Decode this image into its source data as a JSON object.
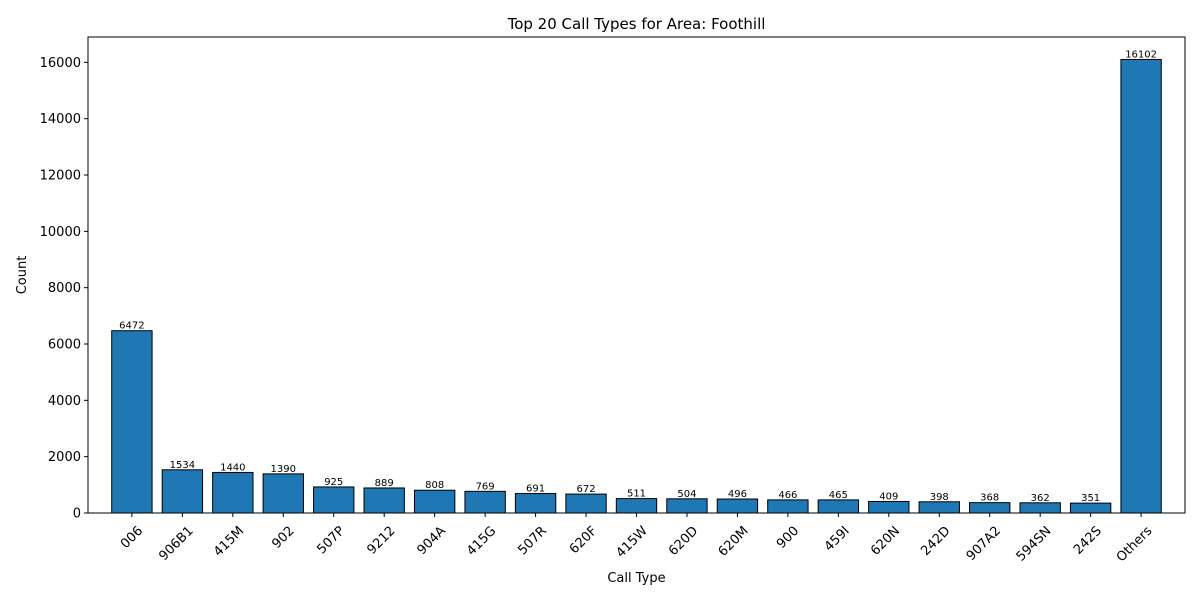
{
  "chart_data": {
    "type": "bar",
    "title": "Top 20 Call Types for Area: Foothill",
    "xlabel": "Call Type",
    "ylabel": "Count",
    "categories": [
      "006",
      "906B1",
      "415M",
      "902",
      "507P",
      "9212",
      "904A",
      "415G",
      "507R",
      "620F",
      "415W",
      "620D",
      "620M",
      "900",
      "459I",
      "620N",
      "242D",
      "907A2",
      "594SN",
      "242S",
      "Others"
    ],
    "values": [
      6472,
      1534,
      1440,
      1390,
      925,
      889,
      808,
      769,
      691,
      672,
      511,
      504,
      496,
      466,
      465,
      409,
      398,
      368,
      362,
      351,
      16102
    ],
    "ylim": [
      0,
      16900
    ],
    "yticks": [
      0,
      2000,
      4000,
      6000,
      8000,
      10000,
      12000,
      14000,
      16000
    ],
    "bar_color": "#1f77b4",
    "grid": false
  }
}
